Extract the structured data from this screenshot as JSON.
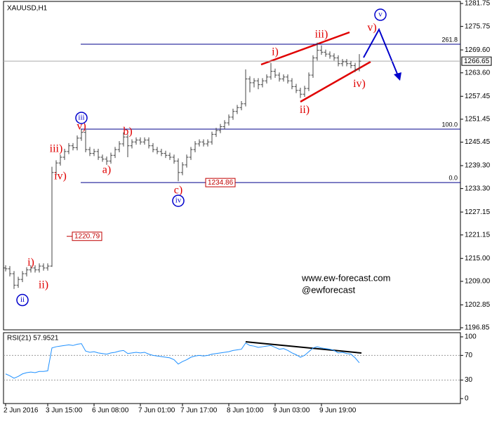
{
  "chart_data": [
    {
      "type": "ohlc",
      "title": "XAUUSD,H1",
      "color": "#444444",
      "categories": [
        "2 Jun 2016",
        null,
        null,
        null,
        null,
        null,
        null,
        null,
        null,
        null,
        "3 Jun 15:00",
        null,
        null,
        null,
        null,
        null,
        null,
        null,
        null,
        null,
        null,
        "6 Jun 08:00",
        null,
        null,
        null,
        null,
        null,
        null,
        null,
        null,
        null,
        null,
        "7 Jun 01:00",
        null,
        null,
        null,
        null,
        null,
        null,
        null,
        null,
        null,
        "7 Jun 17:00",
        null,
        null,
        null,
        null,
        null,
        null,
        null,
        null,
        null,
        null,
        "8 Jun 10:00",
        null,
        null,
        null,
        null,
        null,
        null,
        null,
        null,
        null,
        null,
        "9 Jun 03:00",
        null,
        null,
        null,
        null,
        null,
        null,
        null,
        null,
        null,
        null,
        "9 Jun 19:00",
        null,
        null,
        null,
        null,
        null,
        null,
        null,
        null,
        null
      ],
      "open": [
        1212.5,
        1212.3,
        1211,
        1208,
        1209.5,
        1211,
        1212,
        1212.5,
        1212,
        1213,
        1212.5,
        1213,
        1237.5,
        1240,
        1241.5,
        1243,
        1244.5,
        1244,
        1246.5,
        1248,
        1243.5,
        1242.5,
        1243,
        1241.5,
        1241,
        1240.5,
        1242,
        1243.5,
        1245,
        1246.8,
        1244.5,
        1245.5,
        1246,
        1245.5,
        1246,
        1244.5,
        1243.5,
        1243,
        1242.5,
        1242,
        1241.5,
        1240.5,
        1237.5,
        1239.5,
        1241.5,
        1243.5,
        1245,
        1245.5,
        1245,
        1245.5,
        1247.5,
        1248.5,
        1249.5,
        1250.5,
        1252,
        1253.5,
        1254.5,
        1255.5,
        1262,
        1261,
        1261.5,
        1260.5,
        1261.5,
        1262.5,
        1264,
        1263,
        1262,
        1262.5,
        1261.5,
        1260,
        1259,
        1258,
        1259.5,
        1263,
        1267.5,
        1269.5,
        1269,
        1268.5,
        1268,
        1267.5,
        1266,
        1266.5,
        1266,
        1265.5,
        1264.5
      ],
      "high": [
        1213.2,
        1213.0,
        1211.7,
        1210.2,
        1211.7,
        1212.7,
        1213.2,
        1213.2,
        1213.7,
        1213.7,
        1213.7,
        1239,
        1240.7,
        1242.2,
        1243.7,
        1245.2,
        1245.2,
        1247.2,
        1248.8,
        1248.7,
        1244.2,
        1243.7,
        1243.7,
        1242.2,
        1241.7,
        1242.7,
        1244.2,
        1245.7,
        1248,
        1247.5,
        1246.2,
        1246.7,
        1246.7,
        1246.7,
        1246.7,
        1245.2,
        1244.2,
        1243.7,
        1243.2,
        1242.7,
        1242.2,
        1241.2,
        1240.2,
        1242.2,
        1244.2,
        1245.7,
        1246.2,
        1246.2,
        1246.2,
        1248.2,
        1249.2,
        1250.2,
        1251.2,
        1252.7,
        1254.2,
        1255.2,
        1256.2,
        1264.5,
        1262.7,
        1262.2,
        1262.2,
        1262.2,
        1263.2,
        1266.2,
        1264.7,
        1263.7,
        1263.2,
        1263.2,
        1262.2,
        1260.7,
        1259.7,
        1260.2,
        1263.7,
        1268.2,
        1271.5,
        1270.8,
        1269.7,
        1269.2,
        1268.7,
        1268.2,
        1267.2,
        1267.2,
        1266.7,
        1266.2,
        1268.5
      ],
      "low": [
        1211.6,
        1210.3,
        1207.0,
        1207.3,
        1208.8,
        1210.3,
        1211.3,
        1211.3,
        1211.3,
        1211.8,
        1211.8,
        1212.8,
        1236.8,
        1239.3,
        1240.8,
        1242.3,
        1243.3,
        1243.3,
        1245.8,
        1242.8,
        1241.8,
        1241.8,
        1240.8,
        1240.3,
        1239.5,
        1239.8,
        1241.3,
        1242.8,
        1244.3,
        1241.5,
        1243.8,
        1244.8,
        1244.8,
        1244.8,
        1243.8,
        1242.8,
        1242.3,
        1241.8,
        1241.3,
        1240.8,
        1239.8,
        1235.2,
        1236.8,
        1238.8,
        1240.8,
        1242.8,
        1244.3,
        1244.3,
        1244.3,
        1244.8,
        1246.8,
        1247.8,
        1248.8,
        1249.8,
        1251.3,
        1252.8,
        1253.8,
        1254.8,
        1258.5,
        1259.8,
        1259.3,
        1259.8,
        1260.8,
        1261.8,
        1262.3,
        1261.3,
        1261.3,
        1260.8,
        1259.3,
        1258.3,
        1257,
        1257.3,
        1258.8,
        1262.3,
        1266.8,
        1268.3,
        1267.8,
        1267.3,
        1266.8,
        1265.3,
        1265.3,
        1265.3,
        1264.8,
        1263.8,
        1264.0
      ],
      "close": [
        1212.3,
        1211,
        1208,
        1209.5,
        1211,
        1212,
        1212.5,
        1212,
        1213,
        1212.5,
        1213,
        1237.5,
        1240,
        1241.5,
        1243,
        1244.5,
        1244,
        1246.5,
        1248,
        1243.5,
        1242.5,
        1243,
        1241.5,
        1241,
        1240.5,
        1242,
        1243.5,
        1245,
        1246.8,
        1244.5,
        1245.5,
        1246,
        1245.5,
        1246,
        1244.5,
        1243.5,
        1243,
        1242.5,
        1242,
        1241.5,
        1240.5,
        1237.5,
        1239.5,
        1241.5,
        1243.5,
        1245,
        1245.5,
        1245,
        1245.5,
        1247.5,
        1248.5,
        1249.5,
        1250.5,
        1252,
        1253.5,
        1254.5,
        1255.5,
        1262,
        1261,
        1261.5,
        1260.5,
        1261.5,
        1262.5,
        1264,
        1263,
        1262,
        1262.5,
        1261.5,
        1260,
        1259,
        1258,
        1259.5,
        1263,
        1267.5,
        1269.5,
        1269,
        1268.5,
        1268,
        1267.5,
        1266,
        1266.5,
        1266,
        1265.5,
        1264.5,
        1266.65
      ],
      "ylim": [
        1196.3,
        1282.3
      ],
      "yticks": [
        1281.75,
        1275.75,
        {
          "value": 1269.6,
          "label": "1269.60"
        },
        {
          "value": 1263.6,
          "label": "1263.60"
        },
        1257.45,
        1251.45,
        1245.45,
        {
          "value": 1239.3,
          "label": "1239.30"
        },
        {
          "value": 1233.3,
          "label": "1233.30"
        },
        1227.15,
        1221.15,
        {
          "value": 1215,
          "label": "1215.00"
        },
        {
          "value": 1209,
          "label": "1209.00"
        },
        1202.85,
        1196.85
      ],
      "last_price": 1266.65,
      "levels": [
        {
          "label": "261.8",
          "price": 1271.09
        },
        {
          "label": "100.0",
          "price": 1248.85
        },
        {
          "label": "0.0",
          "price": 1234.86
        }
      ],
      "level_color": "#00008b",
      "price_labels": [
        {
          "value": 1234.86,
          "color": "#c00000"
        },
        {
          "value": 1220.79,
          "color": "#c00000"
        }
      ],
      "annotations": [
        {
          "text": "ii",
          "x": 4,
          "y": 1204.1,
          "color": "#0000cc",
          "circled": true
        },
        {
          "text": "ii)",
          "x": 9,
          "y": 1207.9,
          "color": "#e00000",
          "circled": false
        },
        {
          "text": "i)",
          "x": 6,
          "y": 1213.8,
          "color": "#e00000",
          "circled": false
        },
        {
          "text": "iv)",
          "x": 13,
          "y": 1236.4,
          "color": "#e00000",
          "circled": false
        },
        {
          "text": "iii)",
          "x": 12,
          "y": 1243.6,
          "color": "#e00000",
          "circled": false
        },
        {
          "text": "v)",
          "x": 18,
          "y": 1249.4,
          "color": "#e00000",
          "circled": false
        },
        {
          "text": "iii",
          "x": 18,
          "y": 1251.8,
          "color": "#0000cc",
          "circled": true
        },
        {
          "text": "a)",
          "x": 24,
          "y": 1238.0,
          "color": "#e00000",
          "circled": false
        },
        {
          "text": "b)",
          "x": 29,
          "y": 1248.1,
          "color": "#e00000",
          "circled": false
        },
        {
          "text": "c)",
          "x": 41,
          "y": 1232.7,
          "color": "#e00000",
          "circled": false
        },
        {
          "text": "iv",
          "x": 41,
          "y": 1230.1,
          "color": "#0000cc",
          "circled": true
        },
        {
          "text": "i)",
          "x": 64,
          "y": 1268.9,
          "color": "#e00000",
          "circled": false
        },
        {
          "text": "ii)",
          "x": 71,
          "y": 1253.8,
          "color": "#e00000",
          "circled": false
        },
        {
          "text": "iii)",
          "x": 75,
          "y": 1273.5,
          "color": "#e00000",
          "circled": false
        },
        {
          "text": "iv)",
          "x": 84,
          "y": 1260.6,
          "color": "#e00000",
          "circled": false
        },
        {
          "text": "v)",
          "x": 87,
          "y": 1275.3,
          "color": "#e00000",
          "circled": false
        },
        {
          "text": "v",
          "x": 89,
          "y": 1278.8,
          "color": "#0000cc",
          "circled": true
        }
      ],
      "watermark": [
        "www.ew-forecast.com",
        "@ewforecast"
      ]
    },
    {
      "type": "line",
      "title": "RSI(21) 57.9521",
      "color": "#1e90ff",
      "values": [
        40,
        37,
        33,
        36,
        40,
        42,
        43,
        42,
        44,
        44,
        45,
        82,
        84,
        85,
        86,
        87,
        86,
        88,
        89,
        77,
        75,
        76,
        74,
        73,
        72,
        74,
        75,
        77,
        78,
        73,
        74,
        75,
        74,
        75,
        72,
        70,
        69,
        68,
        67,
        66,
        63,
        56,
        60,
        63,
        67,
        69,
        70,
        69,
        70,
        72,
        73,
        74,
        75,
        76,
        78,
        79,
        80,
        90,
        86,
        85,
        83,
        84,
        85,
        86,
        83,
        80,
        81,
        78,
        74,
        71,
        67,
        70,
        76,
        82,
        84,
        82,
        81,
        80,
        78,
        74,
        75,
        73,
        72,
        66,
        57.9521
      ],
      "ylim": [
        -8,
        106.8
      ],
      "yticks": [
        100,
        70,
        30,
        0
      ],
      "levels": [
        70,
        30
      ]
    }
  ]
}
